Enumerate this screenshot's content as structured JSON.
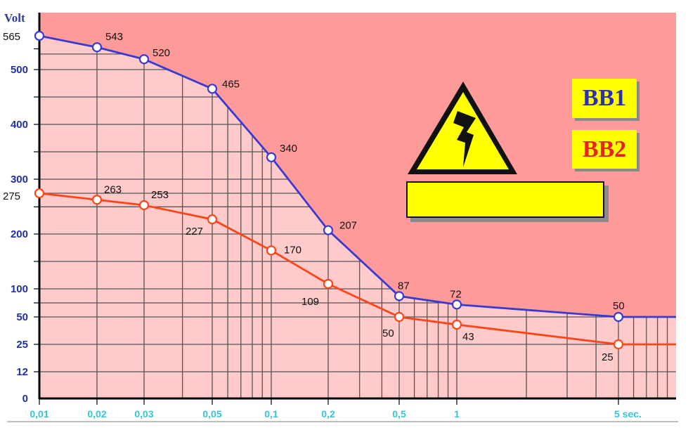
{
  "chart_data": {
    "type": "line",
    "ylabel": "Volt",
    "x_unit_label": "5 sec.",
    "x_scale": "log",
    "xlim": [
      0.01,
      10
    ],
    "ylim": [
      0,
      565
    ],
    "grid": true,
    "x_ticks": [
      {
        "value": 0.01,
        "label": "0,01"
      },
      {
        "value": 0.02,
        "label": "0,02"
      },
      {
        "value": 0.03,
        "label": "0,03"
      },
      {
        "value": 0.05,
        "label": "0,05"
      },
      {
        "value": 0.1,
        "label": "0,1"
      },
      {
        "value": 0.2,
        "label": "0,2"
      },
      {
        "value": 0.5,
        "label": "0,5"
      },
      {
        "value": 1,
        "label": "1"
      },
      {
        "value": 5,
        "label": "5 sec."
      }
    ],
    "y_ticks": [
      {
        "value": 0,
        "label": "0"
      },
      {
        "value": 12,
        "label": "12"
      },
      {
        "value": 25,
        "label": "25"
      },
      {
        "value": 50,
        "label": "50"
      },
      {
        "value": 100,
        "label": "100"
      },
      {
        "value": 200,
        "label": "200"
      },
      {
        "value": 275,
        "label": "275"
      },
      {
        "value": 300,
        "label": "300"
      },
      {
        "value": 400,
        "label": "400"
      },
      {
        "value": 500,
        "label": "500"
      },
      {
        "value": 565,
        "label": "565"
      }
    ],
    "series": [
      {
        "name": "BB1",
        "color": "#3a3ad0",
        "points": [
          {
            "x": 0.01,
            "y": 565,
            "label": "565"
          },
          {
            "x": 0.02,
            "y": 543,
            "label": "543"
          },
          {
            "x": 0.03,
            "y": 520,
            "label": "520"
          },
          {
            "x": 0.05,
            "y": 465,
            "label": "465"
          },
          {
            "x": 0.1,
            "y": 340,
            "label": "340"
          },
          {
            "x": 0.2,
            "y": 207,
            "label": "207"
          },
          {
            "x": 0.5,
            "y": 87,
            "label": "87"
          },
          {
            "x": 1,
            "y": 72,
            "label": "72"
          },
          {
            "x": 5,
            "y": 50,
            "label": "50"
          }
        ],
        "extends_to": 10
      },
      {
        "name": "BB2",
        "color": "#ff4418",
        "points": [
          {
            "x": 0.01,
            "y": 275,
            "label": "275"
          },
          {
            "x": 0.02,
            "y": 263,
            "label": "263"
          },
          {
            "x": 0.03,
            "y": 253,
            "label": "253"
          },
          {
            "x": 0.05,
            "y": 227,
            "label": "227"
          },
          {
            "x": 0.1,
            "y": 170,
            "label": "170"
          },
          {
            "x": 0.2,
            "y": 109,
            "label": "109"
          },
          {
            "x": 0.5,
            "y": 50,
            "label": "50"
          },
          {
            "x": 1,
            "y": 43,
            "label": "43"
          },
          {
            "x": 5,
            "y": 25,
            "label": "25"
          }
        ],
        "extends_to": 10
      }
    ],
    "colors": {
      "upper_region": "#ff9a9a",
      "lower_region": "#ffcaca",
      "grid": "#555555",
      "y_tick_color": "#1f2fa8",
      "x_tick_color": "#35c4d6"
    }
  },
  "legend": {
    "bb1": "BB1",
    "bb2": "BB2"
  },
  "warning_icon": "high-voltage-warning-icon"
}
